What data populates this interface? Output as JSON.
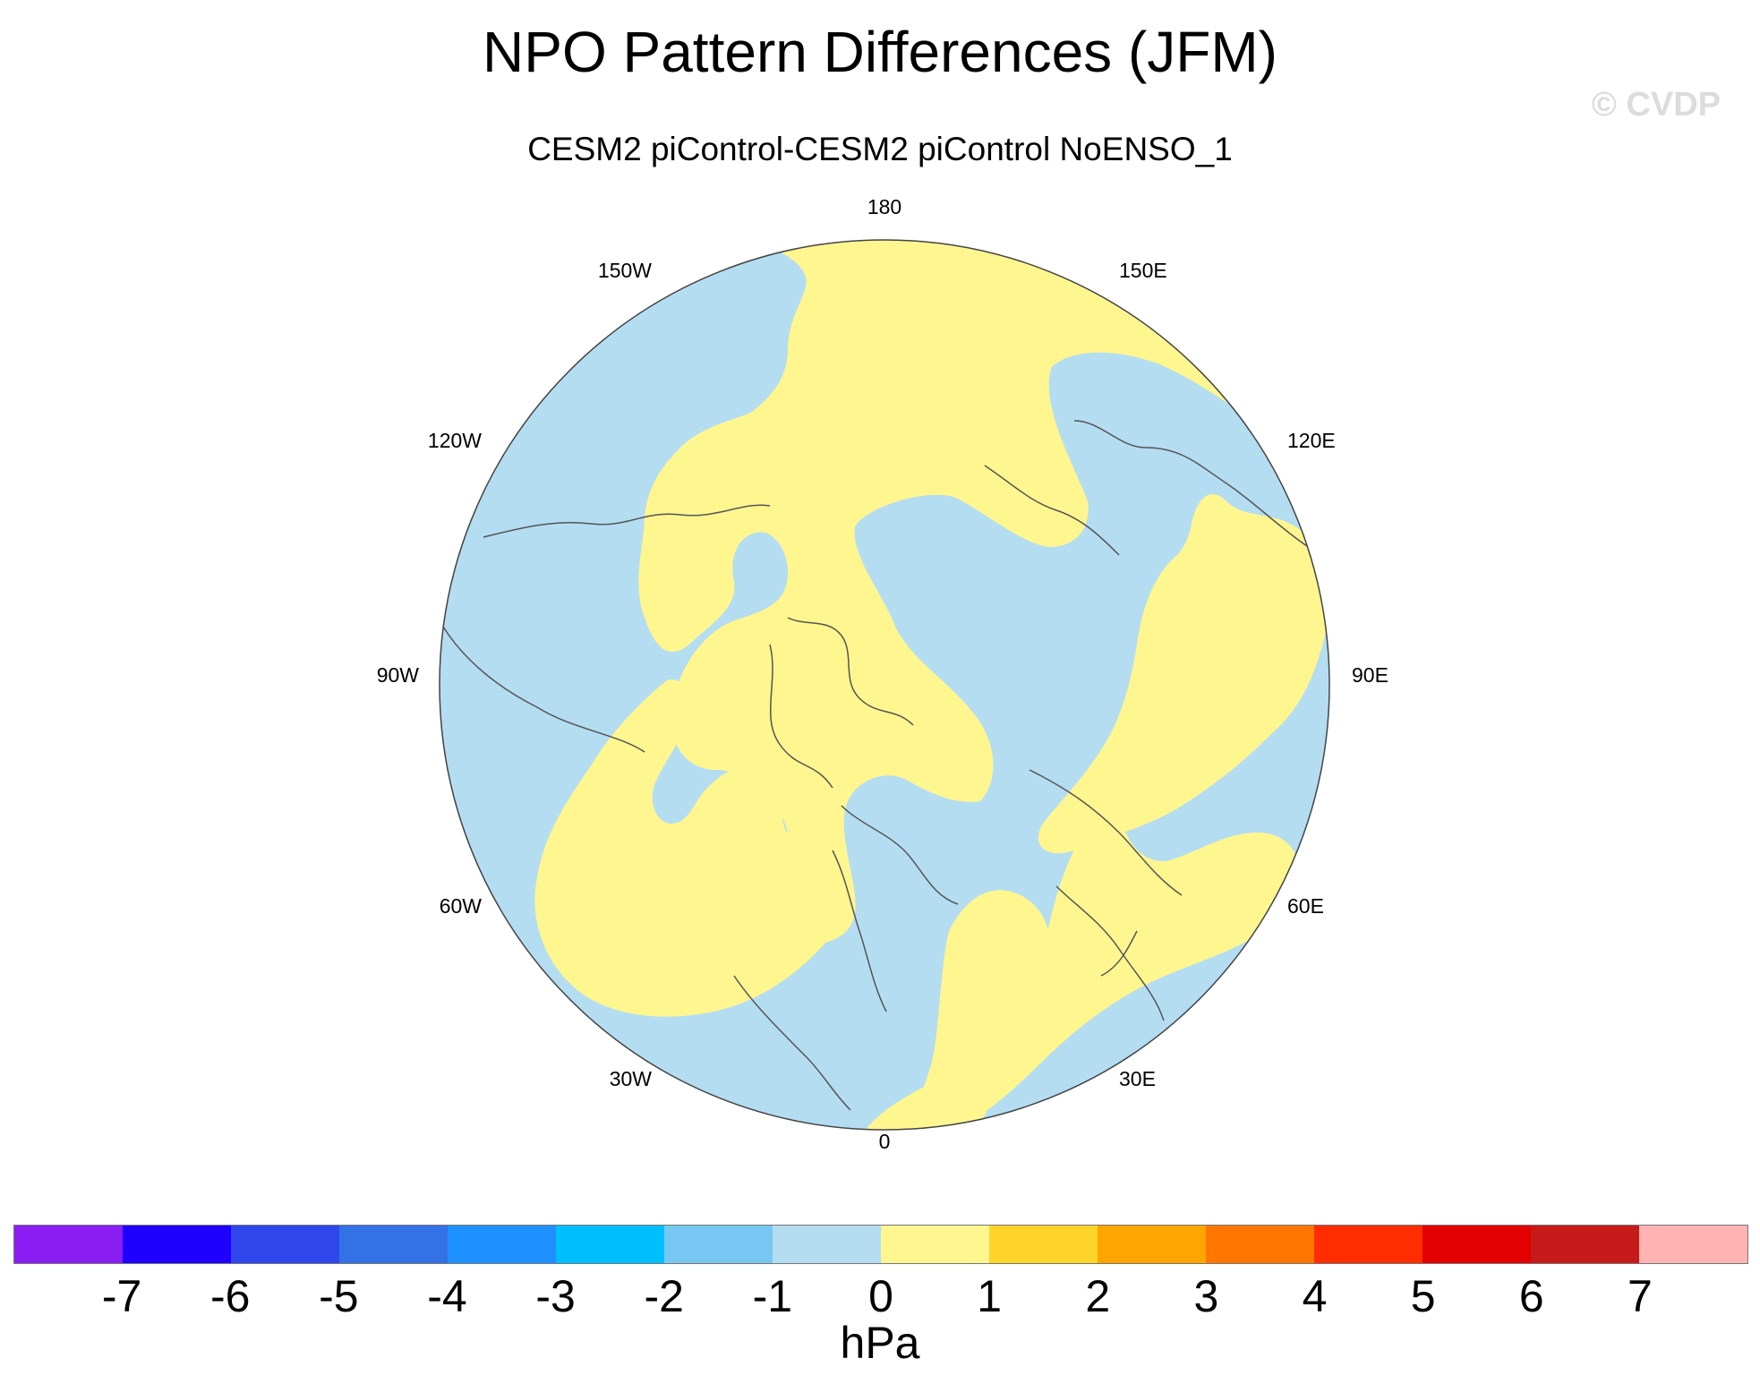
{
  "title": "NPO Pattern Differences (JFM)",
  "subtitle": "CESM2 piControl-CESM2 piControl NoENSO_1",
  "watermark": "© CVDP",
  "map": {
    "projection": "north polar stereographic",
    "longitude_labels": {
      "lon_0": "0",
      "lon_30e": "30E",
      "lon_60e": "60E",
      "lon_90e": "90E",
      "lon_120e": "120E",
      "lon_150e": "150E",
      "lon_180": "180",
      "lon_150w": "150W",
      "lon_120w": "120W",
      "lon_90w": "90W",
      "lon_60w": "60W",
      "lon_30w": "30W"
    },
    "field_colors": {
      "negative_0_to_minus1": "#b4ddf2",
      "positive_0_to_1": "#fff68f",
      "coastline": "#555555"
    }
  },
  "colorbar": {
    "units": "hPa",
    "tick_labels": [
      "-7",
      "-6",
      "-5",
      "-4",
      "-3",
      "-2",
      "-1",
      "0",
      "1",
      "2",
      "3",
      "4",
      "5",
      "6",
      "7"
    ],
    "colors": [
      "#8a1ef2",
      "#1f00ff",
      "#2e46ec",
      "#3371e6",
      "#1e90ff",
      "#00bfff",
      "#76c8f2",
      "#b4ddf2",
      "#fff68f",
      "#ffd42a",
      "#ffa500",
      "#ff7700",
      "#ff2d00",
      "#e30000",
      "#c71a1a",
      "#ffb3b3"
    ]
  }
}
